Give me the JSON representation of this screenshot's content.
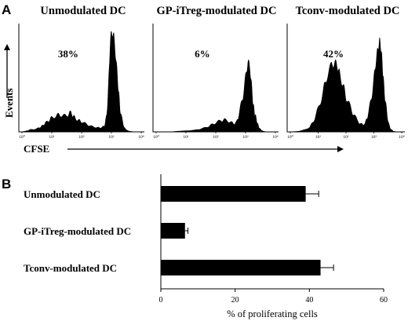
{
  "panel_a_label": "A",
  "panel_b_label": "B",
  "panel_a": {
    "y_axis_label": "Events",
    "x_axis_label": "CFSE",
    "x_tick_labels": [
      "10⁰",
      "10¹",
      "10²",
      "10³",
      "10⁴"
    ]
  },
  "chart_data": [
    {
      "type": "area",
      "title": "Unmodulated DC",
      "annotation": "38%",
      "xlabel": "CFSE",
      "ylabel": "Events",
      "xscale": "log",
      "xlim": [
        1,
        10000
      ],
      "x": [
        1,
        1.5,
        2,
        3,
        4,
        5,
        6,
        8,
        10,
        15,
        20,
        30,
        40,
        50,
        60,
        80,
        100,
        150,
        200,
        300,
        400,
        500,
        600,
        700,
        800,
        900,
        1000,
        1200,
        1400,
        1600,
        1800,
        2000,
        2500,
        3000,
        4000,
        6000,
        8000,
        10000
      ],
      "y": [
        0,
        2,
        4,
        5,
        8,
        11,
        15,
        20,
        25,
        29,
        30,
        27,
        34,
        30,
        24,
        20,
        18,
        13,
        10,
        8,
        7,
        8,
        12,
        30,
        80,
        150,
        178,
        168,
        132,
        95,
        60,
        35,
        12,
        4,
        1,
        0,
        0,
        0
      ]
    },
    {
      "type": "area",
      "title": "GP-iTreg-modulated DC",
      "annotation": "6%",
      "xlabel": "CFSE",
      "ylabel": "Events",
      "xscale": "log",
      "xlim": [
        1,
        10000
      ],
      "x": [
        1,
        3,
        5,
        10,
        20,
        30,
        50,
        70,
        100,
        150,
        200,
        300,
        400,
        500,
        600,
        800,
        1000,
        1200,
        1400,
        1600,
        1800,
        2000,
        2200,
        2500,
        2800,
        3200,
        3600,
        4000,
        5000,
        7000,
        10000
      ],
      "y": [
        0,
        0,
        1,
        2,
        3,
        5,
        8,
        12,
        16,
        20,
        21,
        18,
        14,
        17,
        30,
        60,
        95,
        125,
        112,
        78,
        48,
        32,
        26,
        15,
        8,
        4,
        2,
        1,
        0,
        0,
        0
      ]
    },
    {
      "type": "area",
      "title": "Tconv-modulated DC",
      "annotation": "42%",
      "xlabel": "CFSE",
      "ylabel": "Events",
      "xscale": "log",
      "xlim": [
        1,
        10000
      ],
      "x": [
        1,
        2,
        3,
        5,
        7,
        10,
        15,
        20,
        30,
        40,
        50,
        60,
        80,
        100,
        150,
        200,
        300,
        400,
        500,
        600,
        800,
        1000,
        1200,
        1400,
        1600,
        1800,
        2000,
        2200,
        2500,
        3000,
        3500,
        4000,
        5000,
        7000,
        10000
      ],
      "y": [
        0,
        1,
        3,
        8,
        20,
        40,
        70,
        95,
        118,
        122,
        115,
        100,
        80,
        62,
        40,
        28,
        16,
        12,
        16,
        28,
        55,
        92,
        126,
        146,
        160,
        148,
        120,
        90,
        60,
        28,
        12,
        5,
        1,
        0,
        0
      ]
    },
    {
      "type": "bar",
      "orientation": "horizontal",
      "categories": [
        "Unmodulated DC",
        "GP-iTreg-modulated DC",
        "Tconv-modulated DC"
      ],
      "values": [
        39,
        6.5,
        43
      ],
      "errors": [
        3.5,
        0.8,
        3.5
      ],
      "xlabel": "% of proliferating cells",
      "xlim": [
        0,
        60
      ],
      "xticks": [
        0,
        20,
        40,
        60
      ],
      "grid": false
    }
  ]
}
